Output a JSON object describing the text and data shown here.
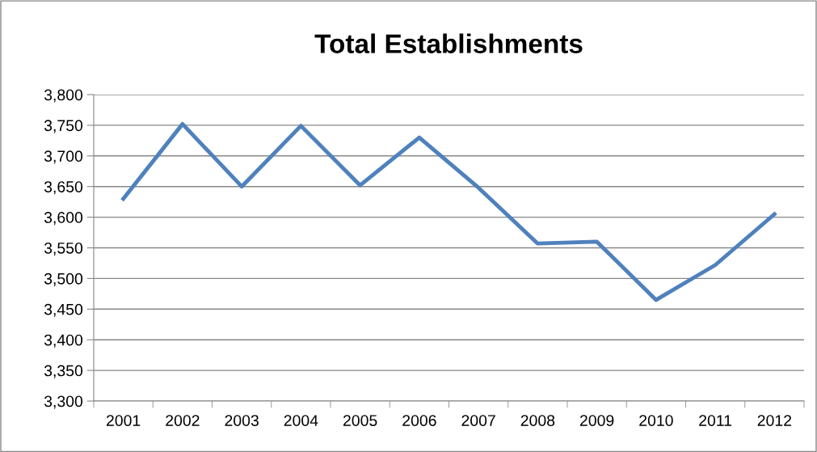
{
  "chart_data": {
    "type": "line",
    "title": "Total Establishments",
    "categories": [
      "2001",
      "2002",
      "2003",
      "2004",
      "2005",
      "2006",
      "2007",
      "2008",
      "2009",
      "2010",
      "2011",
      "2012"
    ],
    "series": [
      {
        "color": "#4f81bd",
        "values": [
          3630,
          3752,
          3650,
          3749,
          3652,
          3730,
          3648,
          3557,
          3560,
          3465,
          3522,
          3605
        ]
      }
    ],
    "ylim": [
      3300,
      3800
    ],
    "yticks": [
      {
        "value": 3300,
        "label": "3,300"
      },
      {
        "value": 3350,
        "label": "3,350"
      },
      {
        "value": 3400,
        "label": "3,400"
      },
      {
        "value": 3450,
        "label": "3,450"
      },
      {
        "value": 3500,
        "label": "3,500"
      },
      {
        "value": 3550,
        "label": "3,550"
      },
      {
        "value": 3600,
        "label": "3,600"
      },
      {
        "value": 3650,
        "label": "3,650"
      },
      {
        "value": 3700,
        "label": "3,700"
      },
      {
        "value": 3750,
        "label": "3,750"
      },
      {
        "value": 3800,
        "label": "3,800"
      }
    ],
    "grid": "y",
    "marker": "none",
    "line_style": "solid"
  }
}
